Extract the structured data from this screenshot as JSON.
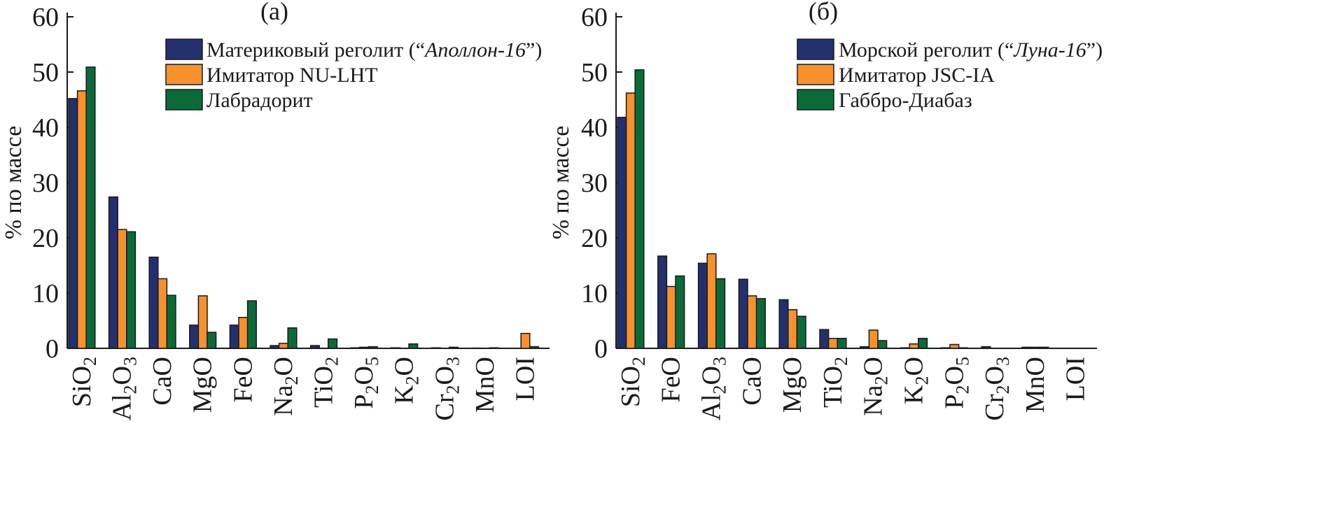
{
  "colors": {
    "blue": "#23306e",
    "orange": "#f7912c",
    "green": "#0a6b38"
  },
  "chart_data": [
    {
      "type": "bar",
      "title": "(а)",
      "xlabel": "",
      "ylabel": "% по массе",
      "ylim": [
        0,
        60
      ],
      "yticks": [
        "0",
        "10",
        "20",
        "30",
        "40",
        "50",
        "60"
      ],
      "categories": [
        "SiO₂",
        "Al₂O₃",
        "CaO",
        "MgO",
        "FeO",
        "Na₂O",
        "TiO₂",
        "P₂O₅",
        "K₂O",
        "Cr₂O₃",
        "MnO",
        "LOI"
      ],
      "category_parts": [
        [
          "SiO",
          "2",
          ""
        ],
        [
          "Al",
          "2",
          "O",
          "3"
        ],
        [
          "CaO"
        ],
        [
          "MgO"
        ],
        [
          "FeO"
        ],
        [
          "Na",
          "2",
          "O"
        ],
        [
          "TiO",
          "2"
        ],
        [
          "P",
          "2",
          "O",
          "5"
        ],
        [
          "K",
          "2",
          "O"
        ],
        [
          "Cr",
          "2",
          "O",
          "3"
        ],
        [
          "MnO"
        ],
        [
          "LOI"
        ]
      ],
      "series": [
        {
          "name": "Материковый реголит (“Аполлон-16”)",
          "name_plain": "Материковый реголит (“",
          "name_italic": "Аполлон-16",
          "name_end": "”)",
          "color": "#23306e",
          "values": [
            45.2,
            27.4,
            16.5,
            4.2,
            4.2,
            0.5,
            0.5,
            0.1,
            0.1,
            0.1,
            0.05,
            0.0
          ]
        },
        {
          "name": "Имитатор NU-LHT",
          "name_plain": "Имитатор NU-LHT",
          "color": "#f7912c",
          "values": [
            46.6,
            21.5,
            12.6,
            9.5,
            5.6,
            0.9,
            0.0,
            0.2,
            0.0,
            0.0,
            0.0,
            2.7
          ]
        },
        {
          "name": "Лабрадорит",
          "name_plain": "Лабрадорит",
          "color": "#0a6b38",
          "values": [
            50.9,
            21.1,
            9.6,
            2.9,
            8.6,
            3.7,
            1.7,
            0.3,
            0.8,
            0.2,
            0.1,
            0.3
          ]
        }
      ]
    },
    {
      "type": "bar",
      "title": "(б)",
      "xlabel": "",
      "ylabel": "% по массе",
      "ylim": [
        0,
        60
      ],
      "yticks": [
        "0",
        "10",
        "20",
        "30",
        "40",
        "50",
        "60"
      ],
      "categories": [
        "SiO₂",
        "FeO",
        "Al₂O₃",
        "CaO",
        "MgO",
        "TiO₂",
        "Na₂O",
        "K₂O",
        "P₂O₅",
        "Cr₂O₃",
        "MnO",
        "LOI"
      ],
      "category_parts": [
        [
          "SiO",
          "2"
        ],
        [
          "FeO"
        ],
        [
          "Al",
          "2",
          "O",
          "3"
        ],
        [
          "CaO"
        ],
        [
          "MgO"
        ],
        [
          "TiO",
          "2"
        ],
        [
          "Na",
          "2",
          "O"
        ],
        [
          "K",
          "2",
          "O"
        ],
        [
          "P",
          "2",
          "O",
          "5"
        ],
        [
          "Cr",
          "2",
          "O",
          "3"
        ],
        [
          "MnO"
        ],
        [
          "LOI"
        ]
      ],
      "series": [
        {
          "name": "Морской реголит (“Луна-16”)",
          "name_plain": "Морской реголит (“",
          "name_italic": "Луна-16",
          "name_end": "”)",
          "color": "#23306e",
          "values": [
            41.8,
            16.7,
            15.4,
            12.5,
            8.8,
            3.4,
            0.3,
            0.1,
            0.1,
            0.3,
            0.2,
            0.0
          ]
        },
        {
          "name": "Имитатор JSC-IA",
          "name_plain": "Имитатор JSC-IA",
          "color": "#f7912c",
          "values": [
            46.2,
            11.2,
            17.1,
            9.5,
            7.0,
            1.8,
            3.3,
            0.8,
            0.7,
            0.0,
            0.2,
            0.0
          ]
        },
        {
          "name": "Габбро-Диабаз",
          "name_plain": "Габбро-Диабаз",
          "color": "#0a6b38",
          "values": [
            50.4,
            13.1,
            12.6,
            9.0,
            5.8,
            1.8,
            1.4,
            1.8,
            0.1,
            0.0,
            0.2,
            0.0
          ]
        }
      ]
    }
  ]
}
